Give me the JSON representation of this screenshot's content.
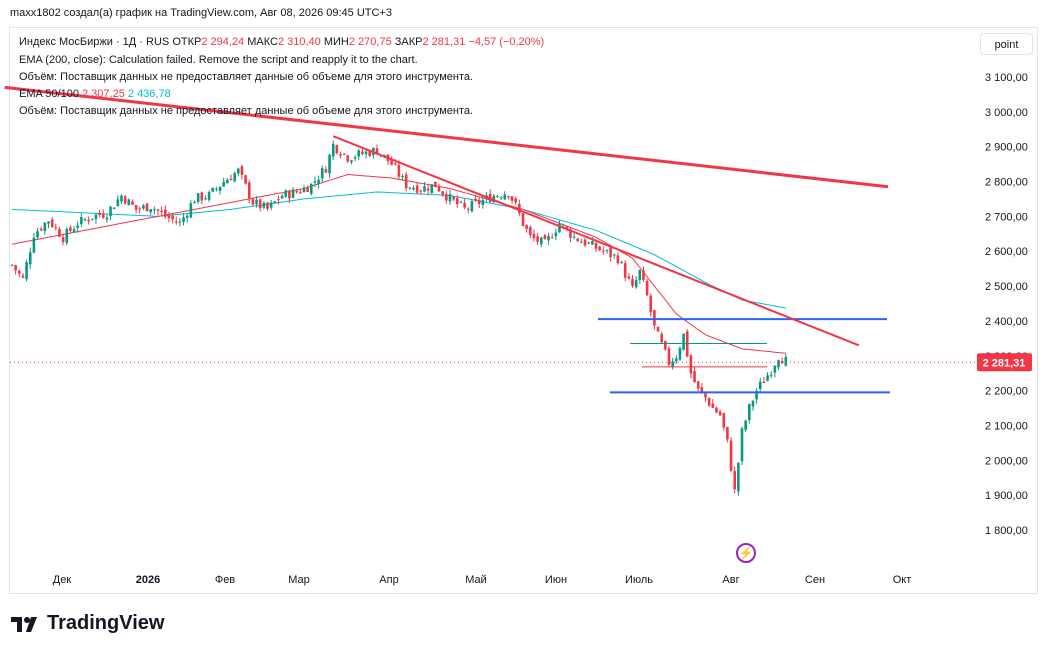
{
  "header": {
    "text": "maxx1802 создал(а) график на TradingView.com, Авг 08, 2026 09:45 UTC+3"
  },
  "legend": {
    "symbol": "Индекс МосБиржи · 1Д · RUS",
    "open_label": "ОТКР",
    "open": "2 294,24",
    "high_label": "МАКС",
    "high": "2 310,40",
    "low_label": "МИН",
    "low": "2 270,75",
    "close_label": "ЗАКР",
    "close": "2 281,31",
    "change": "−4,57 (−0,20%)",
    "ema200": "EMA (200, close): Calculation failed. Remove the script and reapply it to the chart.",
    "volume1": "Объём: Поставщик данных не предоставляет данные об объеме для этого инструмента.",
    "ema_label": "EMA 50/100",
    "ema50": "2 307,25",
    "ema100": "2 436,78",
    "volume2": "Объём: Поставщик данных не предоставляет данные об объеме для этого инструмента."
  },
  "toolbar": {
    "point_label": "point",
    "bolt_icon": "lightning-icon"
  },
  "brand": {
    "name": "TradingView",
    "icon": "tradingview-logo-icon"
  },
  "colors": {
    "up": "#089981",
    "down": "#f23645",
    "ema50": "#f23645",
    "ema100": "#00bcd4",
    "hline": "#2962ff",
    "trend": "#f23645"
  },
  "chart_data": {
    "type": "candlestick",
    "title": "Индекс МосБиржи · 1Д · RUS",
    "x_ticks": [
      "Дек",
      "2026",
      "Фев",
      "Мар",
      "Апр",
      "Май",
      "Июн",
      "Июль",
      "Авг",
      "Сен",
      "Окт"
    ],
    "y_ticks": [
      "3 100,00",
      "3 000,00",
      "2 900,00",
      "2 800,00",
      "2 700,00",
      "2 600,00",
      "2 500,00",
      "2 400,00",
      "2 300,00",
      "2 200,00",
      "2 100,00",
      "2 000,00",
      "1 900,00",
      "1 800,00"
    ],
    "ylim": [
      1740,
      3170
    ],
    "last_price": "2 281,31",
    "close_path": [
      [
        0,
        2560
      ],
      [
        3,
        2520
      ],
      [
        6,
        2650
      ],
      [
        10,
        2690
      ],
      [
        14,
        2640
      ],
      [
        18,
        2680
      ],
      [
        22,
        2700
      ],
      [
        26,
        2710
      ],
      [
        30,
        2760
      ],
      [
        34,
        2720
      ],
      [
        38,
        2730
      ],
      [
        42,
        2700
      ],
      [
        46,
        2680
      ],
      [
        50,
        2750
      ],
      [
        54,
        2760
      ],
      [
        58,
        2800
      ],
      [
        62,
        2830
      ],
      [
        66,
        2740
      ],
      [
        70,
        2720
      ],
      [
        74,
        2760
      ],
      [
        78,
        2770
      ],
      [
        82,
        2790
      ],
      [
        86,
        2840
      ],
      [
        88,
        2905
      ],
      [
        92,
        2870
      ],
      [
        96,
        2880
      ],
      [
        100,
        2890
      ],
      [
        104,
        2850
      ],
      [
        108,
        2790
      ],
      [
        112,
        2780
      ],
      [
        116,
        2790
      ],
      [
        120,
        2750
      ],
      [
        124,
        2720
      ],
      [
        128,
        2740
      ],
      [
        132,
        2760
      ],
      [
        136,
        2770
      ],
      [
        138,
        2730
      ],
      [
        140,
        2680
      ],
      [
        142,
        2640
      ],
      [
        146,
        2620
      ],
      [
        150,
        2680
      ],
      [
        154,
        2640
      ],
      [
        158,
        2620
      ],
      [
        162,
        2600
      ],
      [
        166,
        2580
      ],
      [
        170,
        2490
      ],
      [
        172,
        2540
      ],
      [
        174,
        2470
      ],
      [
        176,
        2380
      ],
      [
        178,
        2330
      ],
      [
        180,
        2280
      ],
      [
        182,
        2300
      ],
      [
        184,
        2360
      ],
      [
        186,
        2250
      ],
      [
        188,
        2200
      ],
      [
        190,
        2180
      ],
      [
        192,
        2150
      ],
      [
        194,
        2130
      ],
      [
        196,
        2050
      ],
      [
        198,
        1910
      ],
      [
        200,
        2080
      ],
      [
        202,
        2150
      ],
      [
        204,
        2200
      ],
      [
        206,
        2230
      ],
      [
        208,
        2260
      ],
      [
        210,
        2300
      ],
      [
        212,
        2285
      ]
    ],
    "ema50_path": [
      [
        0,
        2620
      ],
      [
        20,
        2660
      ],
      [
        40,
        2700
      ],
      [
        60,
        2740
      ],
      [
        80,
        2780
      ],
      [
        92,
        2820
      ],
      [
        104,
        2810
      ],
      [
        120,
        2780
      ],
      [
        140,
        2720
      ],
      [
        160,
        2640
      ],
      [
        170,
        2580
      ],
      [
        176,
        2500
      ],
      [
        182,
        2420
      ],
      [
        190,
        2360
      ],
      [
        200,
        2320
      ],
      [
        212,
        2307
      ]
    ],
    "ema100_path": [
      [
        0,
        2720
      ],
      [
        20,
        2710
      ],
      [
        40,
        2700
      ],
      [
        60,
        2720
      ],
      [
        80,
        2750
      ],
      [
        100,
        2770
      ],
      [
        120,
        2760
      ],
      [
        140,
        2720
      ],
      [
        160,
        2660
      ],
      [
        176,
        2590
      ],
      [
        190,
        2510
      ],
      [
        200,
        2460
      ],
      [
        212,
        2437
      ]
    ],
    "levels": [
      {
        "price": 2405,
        "color": "blue"
      },
      {
        "price": 2195,
        "color": "blue"
      },
      {
        "price": 2335,
        "color": "green"
      },
      {
        "price": 2268,
        "color": "red"
      }
    ],
    "trendlines": [
      {
        "from": [
          -2,
          3070
        ],
        "to": [
          240,
          2785
        ]
      },
      {
        "from": [
          88,
          2930
        ],
        "to": [
          232,
          2330
        ]
      }
    ],
    "grid": true
  }
}
